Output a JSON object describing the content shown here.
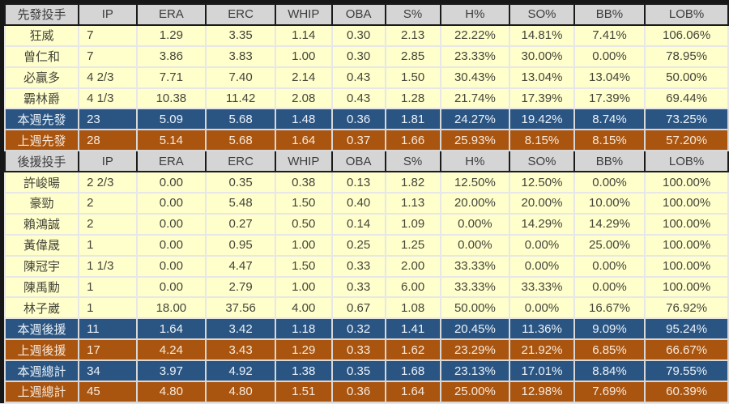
{
  "colors": {
    "outer_border": "#171717",
    "section_header_bg": "#D5D5D5",
    "section_header_text": "#3C3C3C",
    "player_row_bg": "#FFFFCC",
    "player_row_text": "#45453A",
    "this_week_bg": "#2A5582",
    "this_week_text": "#ECF2F9",
    "last_week_bg": "#A9540F",
    "last_week_text": "#F7EADC",
    "light_gridline": "#E7E7E7",
    "bottom_strip": "#EDE6E0"
  },
  "chart_data": {
    "type": "table",
    "column_headers": [
      "IP",
      "ERA",
      "ERC",
      "WHIP",
      "OBA",
      "S%",
      "H%",
      "SO%",
      "BB%",
      "LOB%"
    ],
    "sections": [
      {
        "header": "先發投手",
        "players": [
          {
            "name": "狂威",
            "values": [
              "7",
              "1.29",
              "3.35",
              "1.14",
              "0.30",
              "2.13",
              "22.22%",
              "14.81%",
              "7.41%",
              "106.06%"
            ]
          },
          {
            "name": "曾仁和",
            "values": [
              "7",
              "3.86",
              "3.83",
              "1.00",
              "0.30",
              "2.85",
              "23.33%",
              "30.00%",
              "0.00%",
              "78.95%"
            ]
          },
          {
            "name": "必贏多",
            "values": [
              "4 2/3",
              "7.71",
              "7.40",
              "2.14",
              "0.43",
              "1.50",
              "30.43%",
              "13.04%",
              "13.04%",
              "50.00%"
            ]
          },
          {
            "name": "霸林爵",
            "values": [
              "4 1/3",
              "10.38",
              "11.42",
              "2.08",
              "0.43",
              "1.28",
              "21.74%",
              "17.39%",
              "17.39%",
              "69.44%"
            ]
          }
        ],
        "summaries": [
          {
            "name": "本週先發",
            "style": "this-week",
            "values": [
              "23",
              "5.09",
              "5.68",
              "1.48",
              "0.36",
              "1.81",
              "24.27%",
              "19.42%",
              "8.74%",
              "73.25%"
            ]
          },
          {
            "name": "上週先發",
            "style": "last-week",
            "values": [
              "28",
              "5.14",
              "5.68",
              "1.64",
              "0.37",
              "1.66",
              "25.93%",
              "8.15%",
              "8.15%",
              "57.20%"
            ]
          }
        ]
      },
      {
        "header": "後援投手",
        "players": [
          {
            "name": "許峻暘",
            "values": [
              "2 2/3",
              "0.00",
              "0.35",
              "0.38",
              "0.13",
              "1.82",
              "12.50%",
              "12.50%",
              "0.00%",
              "100.00%"
            ]
          },
          {
            "name": "豪勁",
            "values": [
              "2",
              "0.00",
              "5.48",
              "1.50",
              "0.40",
              "1.13",
              "20.00%",
              "20.00%",
              "10.00%",
              "100.00%"
            ]
          },
          {
            "name": "賴鴻誠",
            "values": [
              "2",
              "0.00",
              "0.27",
              "0.50",
              "0.14",
              "1.09",
              "0.00%",
              "14.29%",
              "14.29%",
              "100.00%"
            ]
          },
          {
            "name": "黃偉晟",
            "values": [
              "1",
              "0.00",
              "0.95",
              "1.00",
              "0.25",
              "1.25",
              "0.00%",
              "0.00%",
              "25.00%",
              "100.00%"
            ]
          },
          {
            "name": "陳冠宇",
            "values": [
              "1 1/3",
              "0.00",
              "4.47",
              "1.50",
              "0.33",
              "2.00",
              "33.33%",
              "0.00%",
              "0.00%",
              "100.00%"
            ]
          },
          {
            "name": "陳禹勳",
            "values": [
              "1",
              "0.00",
              "2.79",
              "1.00",
              "0.33",
              "6.00",
              "33.33%",
              "33.33%",
              "0.00%",
              "100.00%"
            ]
          },
          {
            "name": "林子崴",
            "values": [
              "1",
              "18.00",
              "37.56",
              "4.00",
              "0.67",
              "1.08",
              "50.00%",
              "0.00%",
              "16.67%",
              "76.92%"
            ]
          }
        ],
        "summaries": [
          {
            "name": "本週後援",
            "style": "this-week",
            "values": [
              "11",
              "1.64",
              "3.42",
              "1.18",
              "0.32",
              "1.41",
              "20.45%",
              "11.36%",
              "9.09%",
              "95.24%"
            ]
          },
          {
            "name": "上週後援",
            "style": "last-week",
            "values": [
              "17",
              "4.24",
              "3.43",
              "1.29",
              "0.33",
              "1.62",
              "23.29%",
              "21.92%",
              "6.85%",
              "66.67%"
            ]
          },
          {
            "name": "本週總計",
            "style": "this-week",
            "values": [
              "34",
              "3.97",
              "4.92",
              "1.38",
              "0.35",
              "1.68",
              "23.13%",
              "17.01%",
              "8.84%",
              "79.55%"
            ]
          },
          {
            "name": "上週總計",
            "style": "last-week",
            "values": [
              "45",
              "4.80",
              "4.80",
              "1.51",
              "0.36",
              "1.64",
              "25.00%",
              "12.98%",
              "7.69%",
              "60.39%"
            ]
          }
        ]
      }
    ]
  }
}
